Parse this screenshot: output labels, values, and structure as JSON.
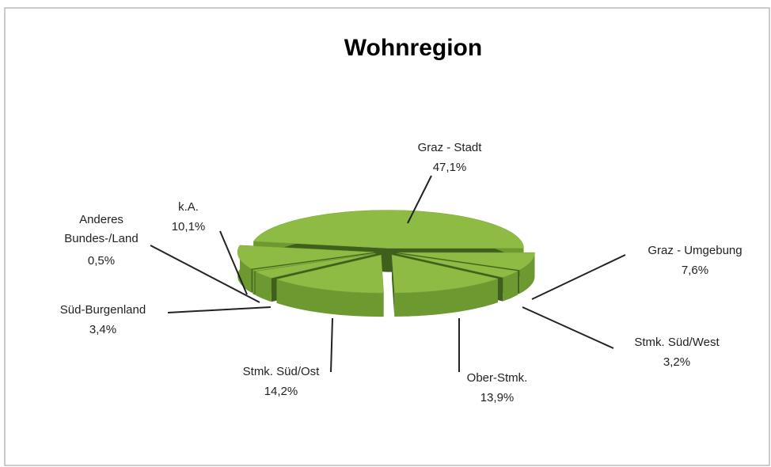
{
  "chart_data": {
    "type": "pie3d",
    "title": "Wohnregion",
    "categories": [
      "Graz - Stadt",
      "Graz - Umgebung",
      "Stmk. Süd/West",
      "Ober-Stmk.",
      "Stmk. Süd/Ost",
      "Süd-Burgenland",
      "Anderes Bundes-/Land",
      "k.A."
    ],
    "values": [
      47.1,
      7.6,
      3.2,
      13.9,
      14.2,
      3.4,
      0.5,
      10.1
    ],
    "value_labels": [
      "47,1%",
      "7,6%",
      "3,2%",
      "13,9%",
      "14,2%",
      "3,4%",
      "0,5%",
      "10,1%"
    ],
    "color": "#8dbb44"
  }
}
